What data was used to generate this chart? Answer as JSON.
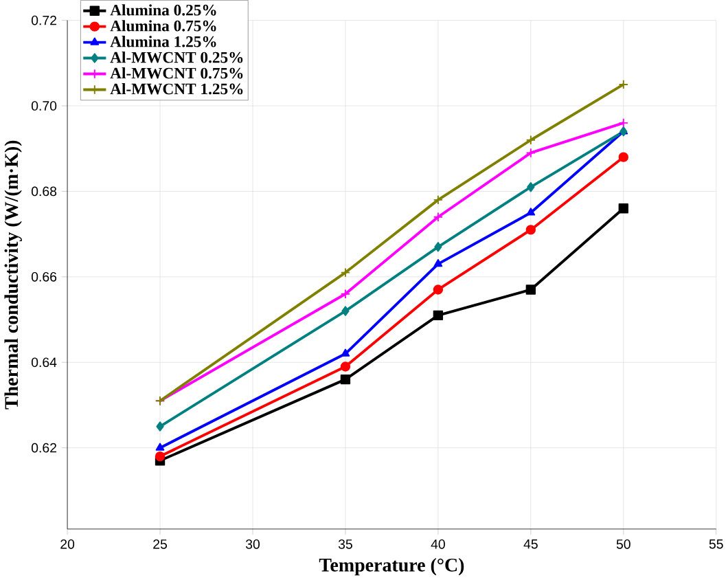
{
  "chart_data": {
    "type": "line",
    "xlabel": "Temperature (°C)",
    "ylabel": "Thermal conductivity (W/(m·K))",
    "x": [
      25,
      35,
      40,
      45,
      50
    ],
    "series": [
      {
        "name": "Alumina 0.25%",
        "color": "#000000",
        "marker": "square",
        "values": [
          0.617,
          0.636,
          0.651,
          0.657,
          0.676
        ]
      },
      {
        "name": "Alumina 0.75%",
        "color": "#ff0000",
        "marker": "circle",
        "values": [
          0.618,
          0.639,
          0.657,
          0.671,
          0.688
        ]
      },
      {
        "name": "Alumina 1.25%",
        "color": "#0000ff",
        "marker": "triangle",
        "values": [
          0.62,
          0.642,
          0.663,
          0.675,
          0.694
        ]
      },
      {
        "name": "Al-MWCNT 0.25%",
        "color": "#008080",
        "marker": "diamond",
        "values": [
          0.625,
          0.652,
          0.667,
          0.681,
          0.694
        ]
      },
      {
        "name": "Al-MWCNT 0.75%",
        "color": "#ff00ff",
        "marker": "cross",
        "values": [
          0.631,
          0.656,
          0.674,
          0.689,
          0.696
        ]
      },
      {
        "name": "Al-MWCNT 1.25%",
        "color": "#808000",
        "marker": "cross",
        "values": [
          0.631,
          0.661,
          0.678,
          0.692,
          0.705
        ]
      }
    ],
    "xlim": [
      20,
      55
    ],
    "xticks": [
      20,
      25,
      30,
      35,
      40,
      45,
      50,
      55
    ],
    "ylim": [
      0.601,
      0.72
    ],
    "yticks": [
      {
        "value": 0.62,
        "label": "0.62"
      },
      {
        "value": 0.64,
        "label": "0.64"
      },
      {
        "value": 0.66,
        "label": "0.66"
      },
      {
        "value": 0.68,
        "label": "0.68"
      },
      {
        "value": 0.7,
        "label": "0.70"
      },
      {
        "value": 0.72,
        "label": "0.72"
      }
    ],
    "grid": true,
    "legend": "top left",
    "line_style": "solid"
  }
}
